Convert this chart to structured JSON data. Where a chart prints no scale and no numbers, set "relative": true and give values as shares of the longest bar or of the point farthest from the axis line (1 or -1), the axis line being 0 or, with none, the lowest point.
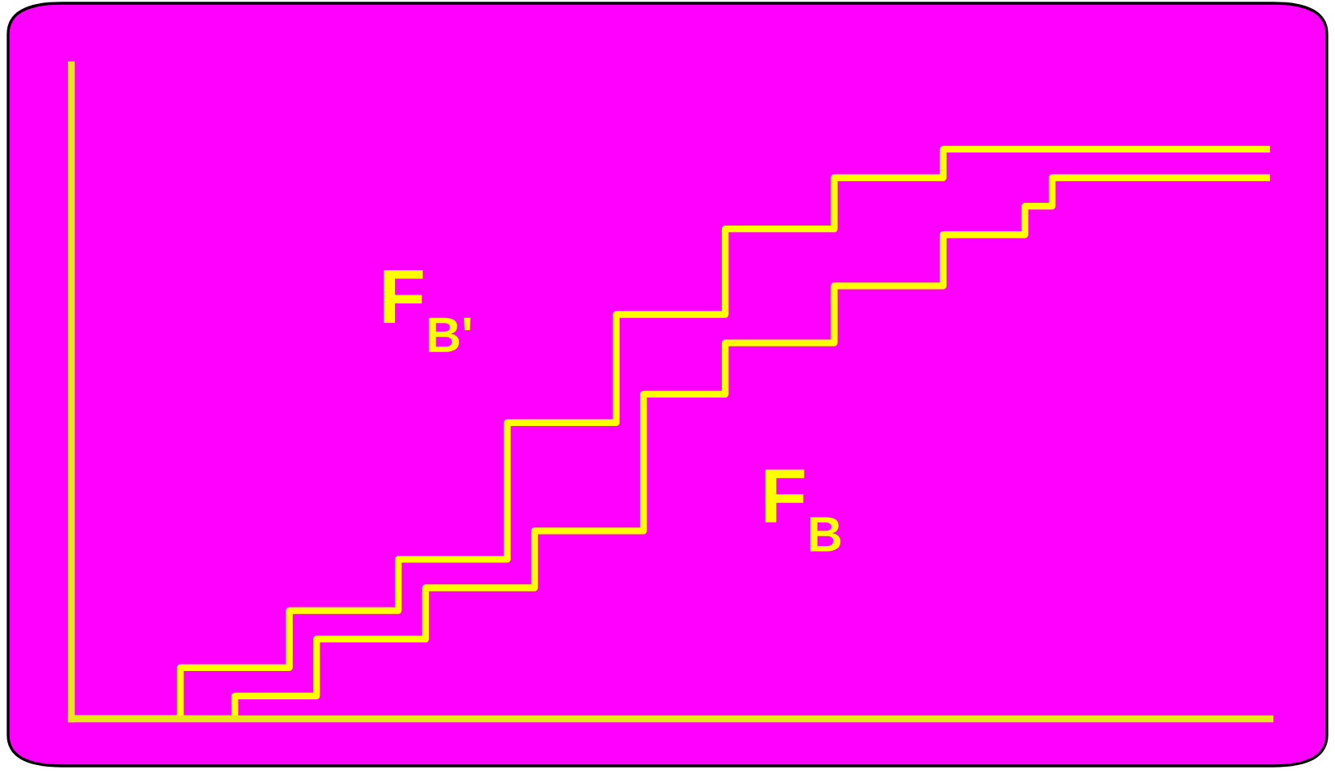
{
  "chart_data": {
    "type": "step",
    "relative": true,
    "categories": [
      null,
      null,
      null,
      null,
      null,
      null,
      null,
      null,
      null,
      null,
      null,
      null,
      null,
      null,
      null,
      null,
      null,
      null,
      null,
      null,
      null,
      null,
      null,
      null,
      null,
      null,
      null,
      null,
      null,
      null,
      null,
      null,
      null,
      null,
      null,
      null,
      null,
      null,
      null,
      null,
      null,
      null,
      null,
      null,
      null
    ],
    "series": [
      {
        "name": "F$_{B'}$",
        "color": "#ffff00",
        "values": [
          0,
          0,
          0,
          0,
          0.09,
          0.09,
          0.09,
          0.09,
          0.19,
          0.19,
          0.19,
          0.19,
          0.28,
          0.28,
          0.28,
          0.28,
          0.52,
          0.52,
          0.52,
          0.52,
          0.71,
          0.71,
          0.71,
          0.71,
          0.86,
          0.86,
          0.86,
          0.86,
          0.95,
          0.95,
          0.95,
          0.95,
          1,
          1,
          1,
          1,
          1,
          1,
          1,
          1,
          1,
          1,
          1,
          1,
          1
        ]
      },
      {
        "name": "F$_{B}$",
        "color": "#ffff00",
        "values": [
          0,
          0,
          0,
          0,
          0,
          0,
          0.04,
          0.04,
          0.04,
          0.14,
          0.14,
          0.14,
          0.14,
          0.23,
          0.23,
          0.23,
          0.23,
          0.33,
          0.33,
          0.33,
          0.33,
          0.57,
          0.57,
          0.57,
          0.66,
          0.66,
          0.66,
          0.66,
          0.76,
          0.76,
          0.76,
          0.76,
          0.85,
          0.85,
          0.85,
          0.9,
          0.95,
          0.95,
          0.95,
          0.95,
          0.95,
          0.95,
          0.95,
          0.95,
          0.95
        ]
      }
    ],
    "legend": false
  }
}
